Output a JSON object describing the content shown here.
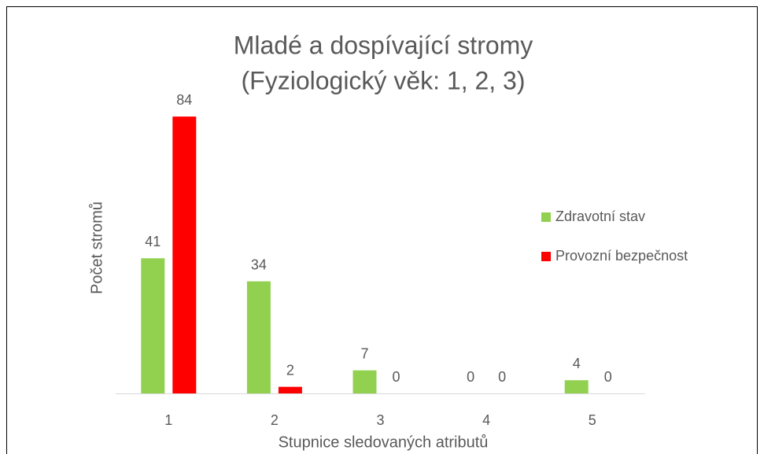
{
  "chart_data": {
    "type": "bar",
    "title": [
      "Mladé a dospívající stromy",
      "(Fyziologický věk: 1, 2, 3)"
    ],
    "x_label": "Stupnice sledovaných atributů",
    "y_label": "Počet stromů",
    "categories": [
      "1",
      "2",
      "3",
      "4",
      "5"
    ],
    "series": [
      {
        "name": "Zdravotní stav",
        "color": "#92d050",
        "values": [
          41,
          34,
          7,
          0,
          4
        ]
      },
      {
        "name": "Provozní bezpečnost",
        "color": "#ff0000",
        "values": [
          84,
          2,
          0,
          0,
          0
        ]
      }
    ],
    "ylim": [
      0,
      90
    ],
    "legend": "right"
  }
}
